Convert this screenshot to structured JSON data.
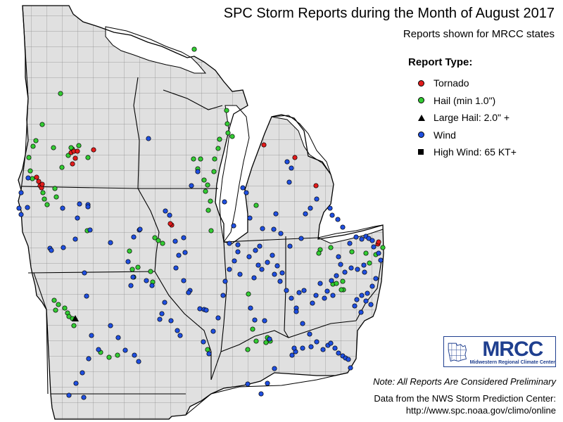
{
  "title": "SPC Storm Reports during the Month of August 2017",
  "subtitle": "Reports shown for MRCC states",
  "legend": {
    "heading": "Report Type:",
    "items": [
      {
        "key": "tornado",
        "label": "Tornado",
        "symbol": "circle",
        "color": "#e21b1b"
      },
      {
        "key": "hail",
        "label": "Hail (min 1.0\")",
        "symbol": "circle",
        "color": "#33cc33"
      },
      {
        "key": "large_hail",
        "label": "Large Hail: 2.0\" +",
        "symbol": "triangle",
        "color": "#000000"
      },
      {
        "key": "wind",
        "label": "Wind",
        "symbol": "circle",
        "color": "#1f4fe0"
      },
      {
        "key": "high_wind",
        "label": "High Wind: 65 KT+",
        "symbol": "square",
        "color": "#000000"
      }
    ]
  },
  "map": {
    "land_color": "#e0e0e0",
    "water_color": "#ffffff",
    "county_line_color": "#8a8a8a",
    "state_line_color": "#000000"
  },
  "reports": {
    "tornado": [
      [
        101,
        217
      ],
      [
        105,
        215
      ],
      [
        107,
        225
      ],
      [
        103,
        233
      ],
      [
        110,
        215
      ],
      [
        133,
        213
      ],
      [
        52,
        252
      ],
      [
        55,
        258
      ],
      [
        57,
        264
      ],
      [
        59,
        267
      ],
      [
        60,
        262
      ],
      [
        244,
        320
      ],
      [
        242,
        318
      ],
      [
        375,
        206
      ],
      [
        419,
        224
      ],
      [
        449,
        264
      ],
      [
        537,
        347
      ],
      [
        538,
        344
      ]
    ],
    "hail": [
      [
        276,
        70
      ],
      [
        86,
        133
      ],
      [
        60,
        177
      ],
      [
        51,
        200
      ],
      [
        47,
        208
      ],
      [
        41,
        224
      ],
      [
        76,
        210
      ],
      [
        103,
        212
      ],
      [
        97,
        221
      ],
      [
        88,
        238
      ],
      [
        125,
        224
      ],
      [
        43,
        243
      ],
      [
        46,
        254
      ],
      [
        61,
        274
      ],
      [
        63,
        283
      ],
      [
        67,
        291
      ],
      [
        78,
        268
      ],
      [
        80,
        280
      ],
      [
        124,
        328
      ],
      [
        184,
        357
      ],
      [
        188,
        383
      ],
      [
        190,
        394
      ],
      [
        196,
        380
      ],
      [
        214,
        386
      ],
      [
        217,
        401
      ],
      [
        220,
        338
      ],
      [
        225,
        342
      ],
      [
        231,
        346
      ],
      [
        275,
        226
      ],
      [
        281,
        240
      ],
      [
        285,
        226
      ],
      [
        290,
        256
      ],
      [
        295,
        263
      ],
      [
        292,
        272
      ],
      [
        299,
        286
      ],
      [
        296,
        299
      ],
      [
        300,
        328
      ],
      [
        305,
        226
      ],
      [
        310,
        211
      ],
      [
        312,
        198
      ],
      [
        322,
        157
      ],
      [
        323,
        176
      ],
      [
        330,
        194
      ],
      [
        324,
        189
      ],
      [
        364,
        292
      ],
      [
        380,
        480
      ],
      [
        384,
        485
      ],
      [
        378,
        487
      ],
      [
        455,
        355
      ],
      [
        470,
        352
      ],
      [
        487,
        400
      ],
      [
        488,
        412
      ],
      [
        473,
        404
      ],
      [
        485,
        412
      ],
      [
        478,
        403
      ],
      [
        500,
        358
      ],
      [
        520,
        360
      ],
      [
        525,
        374
      ],
      [
        534,
        362
      ],
      [
        544,
        352
      ],
      [
        453,
        360
      ],
      [
        77,
        427
      ],
      [
        83,
        433
      ],
      [
        79,
        441
      ],
      [
        92,
        438
      ],
      [
        96,
        445
      ],
      [
        98,
        450
      ],
      [
        103,
        453
      ],
      [
        105,
        463
      ],
      [
        143,
        501
      ],
      [
        155,
        508
      ],
      [
        167,
        505
      ],
      [
        353,
        418
      ],
      [
        359,
        468
      ],
      [
        364,
        485
      ],
      [
        352,
        497
      ],
      [
        295,
        497
      ],
      [
        101,
        210
      ],
      [
        112,
        207
      ],
      [
        304,
        244
      ]
    ],
    "large_hail": [
      [
        107,
        453
      ]
    ],
    "wind": [
      [
        211,
        197
      ],
      [
        281,
        244
      ],
      [
        272,
        264
      ],
      [
        235,
        300
      ],
      [
        241,
        306
      ],
      [
        261,
        338
      ],
      [
        125,
        291
      ],
      [
        128,
        327
      ],
      [
        113,
        290
      ],
      [
        157,
        345
      ],
      [
        198,
        327
      ],
      [
        190,
        337
      ],
      [
        199,
        326
      ],
      [
        249,
        343
      ],
      [
        254,
        363
      ],
      [
        263,
        359
      ],
      [
        250,
        381
      ],
      [
        261,
        399
      ],
      [
        270,
        413
      ],
      [
        284,
        439
      ],
      [
        290,
        440
      ],
      [
        293,
        441
      ],
      [
        268,
        416
      ],
      [
        208,
        399
      ],
      [
        216,
        406
      ],
      [
        186,
        406
      ],
      [
        189,
        394
      ],
      [
        182,
        372
      ],
      [
        71,
        353
      ],
      [
        73,
        356
      ],
      [
        40,
        253
      ],
      [
        30,
        274
      ],
      [
        39,
        295
      ],
      [
        27,
        296
      ],
      [
        30,
        305
      ],
      [
        89,
        296
      ],
      [
        125,
        294
      ],
      [
        110,
        310
      ],
      [
        90,
        352
      ],
      [
        107,
        340
      ],
      [
        120,
        388
      ],
      [
        123,
        421
      ],
      [
        130,
        477
      ],
      [
        117,
        530
      ],
      [
        108,
        545
      ],
      [
        98,
        562
      ],
      [
        119,
        565
      ],
      [
        126,
        510
      ],
      [
        140,
        497
      ],
      [
        157,
        463
      ],
      [
        168,
        480
      ],
      [
        178,
        498
      ],
      [
        191,
        505
      ],
      [
        197,
        514
      ],
      [
        234,
        430
      ],
      [
        230,
        446
      ],
      [
        227,
        454
      ],
      [
        243,
        456
      ],
      [
        252,
        470
      ],
      [
        256,
        477
      ],
      [
        289,
        486
      ],
      [
        297,
        503
      ],
      [
        303,
        471
      ],
      [
        310,
        452
      ],
      [
        317,
        420
      ],
      [
        320,
        400
      ],
      [
        326,
        383
      ],
      [
        333,
        371
      ],
      [
        338,
        358
      ],
      [
        354,
        365
      ],
      [
        361,
        395
      ],
      [
        367,
        377
      ],
      [
        372,
        383
      ],
      [
        387,
        363
      ],
      [
        380,
        373
      ],
      [
        390,
        390
      ],
      [
        394,
        378
      ],
      [
        398,
        400
      ],
      [
        401,
        388
      ],
      [
        407,
        413
      ],
      [
        414,
        424
      ],
      [
        421,
        438
      ],
      [
        430,
        460
      ],
      [
        440,
        475
      ],
      [
        450,
        486
      ],
      [
        459,
        497
      ],
      [
        466,
        491
      ],
      [
        470,
        488
      ],
      [
        476,
        495
      ],
      [
        481,
        502
      ],
      [
        487,
        506
      ],
      [
        491,
        509
      ],
      [
        495,
        511
      ],
      [
        498,
        523
      ],
      [
        420,
        500
      ],
      [
        418,
        495
      ],
      [
        415,
        505
      ],
      [
        430,
        495
      ],
      [
        442,
        493
      ],
      [
        356,
        438
      ],
      [
        362,
        455
      ],
      [
        376,
        456
      ],
      [
        383,
        482
      ],
      [
        380,
        545
      ],
      [
        371,
        560
      ],
      [
        352,
        546
      ],
      [
        390,
        524
      ],
      [
        412,
        350
      ],
      [
        428,
        339
      ],
      [
        434,
        304
      ],
      [
        441,
        296
      ],
      [
        450,
        283
      ],
      [
        469,
        296
      ],
      [
        472,
        306
      ],
      [
        480,
        312
      ],
      [
        487,
        323
      ],
      [
        497,
        346
      ],
      [
        506,
        337
      ],
      [
        514,
        340
      ],
      [
        520,
        336
      ],
      [
        524,
        339
      ],
      [
        529,
        342
      ],
      [
        531,
        351
      ],
      [
        538,
        360
      ],
      [
        541,
        370
      ],
      [
        534,
        396
      ],
      [
        529,
        407
      ],
      [
        522,
        417
      ],
      [
        514,
        420
      ],
      [
        507,
        426
      ],
      [
        504,
        435
      ],
      [
        513,
        444
      ],
      [
        520,
        428
      ],
      [
        527,
        433
      ],
      [
        518,
        387
      ],
      [
        517,
        377
      ],
      [
        508,
        383
      ],
      [
        499,
        381
      ],
      [
        490,
        387
      ],
      [
        484,
        376
      ],
      [
        481,
        365
      ],
      [
        478,
        392
      ],
      [
        473,
        420
      ],
      [
        461,
        424
      ],
      [
        465,
        414
      ],
      [
        471,
        399
      ],
      [
        455,
        403
      ],
      [
        449,
        420
      ],
      [
        444,
        431
      ],
      [
        432,
        413
      ],
      [
        421,
        443
      ],
      [
        425,
        416
      ],
      [
        411,
        259
      ],
      [
        408,
        230
      ],
      [
        414,
        239
      ],
      [
        392,
        304
      ],
      [
        399,
        332
      ],
      [
        389,
        326
      ],
      [
        373,
        325
      ],
      [
        355,
        310
      ],
      [
        350,
        274
      ],
      [
        345,
        267
      ],
      [
        332,
        321
      ],
      [
        319,
        287
      ],
      [
        326,
        346
      ],
      [
        338,
        348
      ],
      [
        341,
        390
      ],
      [
        363,
        356
      ],
      [
        369,
        350
      ]
    ]
  },
  "logo": {
    "name": "MRCC",
    "full_name": "Midwestern Regional Climate Center"
  },
  "note": "Note: All Reports Are Considered Preliminary",
  "source_line1": "Data from the NWS Storm Prediction Center:",
  "source_line2": "http://www.spc.noaa.gov/climo/online"
}
